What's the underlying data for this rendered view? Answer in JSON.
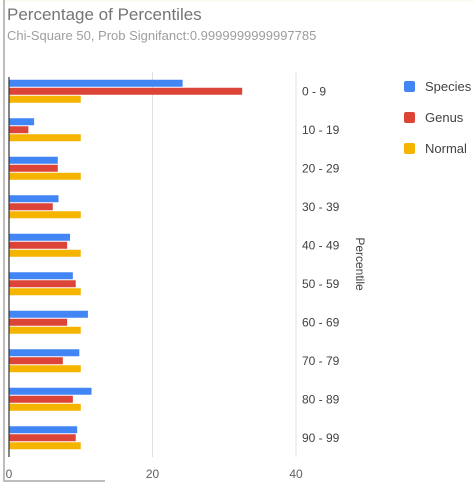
{
  "chart_data": {
    "type": "bar",
    "orientation": "horizontal",
    "title": "Percentage of Percentiles",
    "subtitle": "Chi-Square 50, Prob Signifanct:0.9999999999997785",
    "ylabel": "Percentile",
    "categories": [
      "0 - 9",
      "10 - 19",
      "20 - 29",
      "30 - 39",
      "40 - 49",
      "50 - 59",
      "60 - 69",
      "70 - 79",
      "80 - 89",
      "90 - 99"
    ],
    "series": [
      {
        "name": "Species",
        "color": "#4285f4",
        "values": [
          24.2,
          3.5,
          6.8,
          6.9,
          8.5,
          8.9,
          11.0,
          9.8,
          11.5,
          9.5
        ]
      },
      {
        "name": "Genus",
        "color": "#db4437",
        "values": [
          32.5,
          2.7,
          6.8,
          6.1,
          8.1,
          9.3,
          8.1,
          7.5,
          8.9,
          9.3
        ]
      },
      {
        "name": "Normal",
        "color": "#f4b400",
        "values": [
          10,
          10,
          10,
          10,
          10,
          10,
          10,
          10,
          10,
          10
        ]
      }
    ],
    "xlim": [
      0,
      40
    ],
    "xticks": [
      0,
      20,
      40
    ],
    "grid": true,
    "legend_position": "right"
  }
}
